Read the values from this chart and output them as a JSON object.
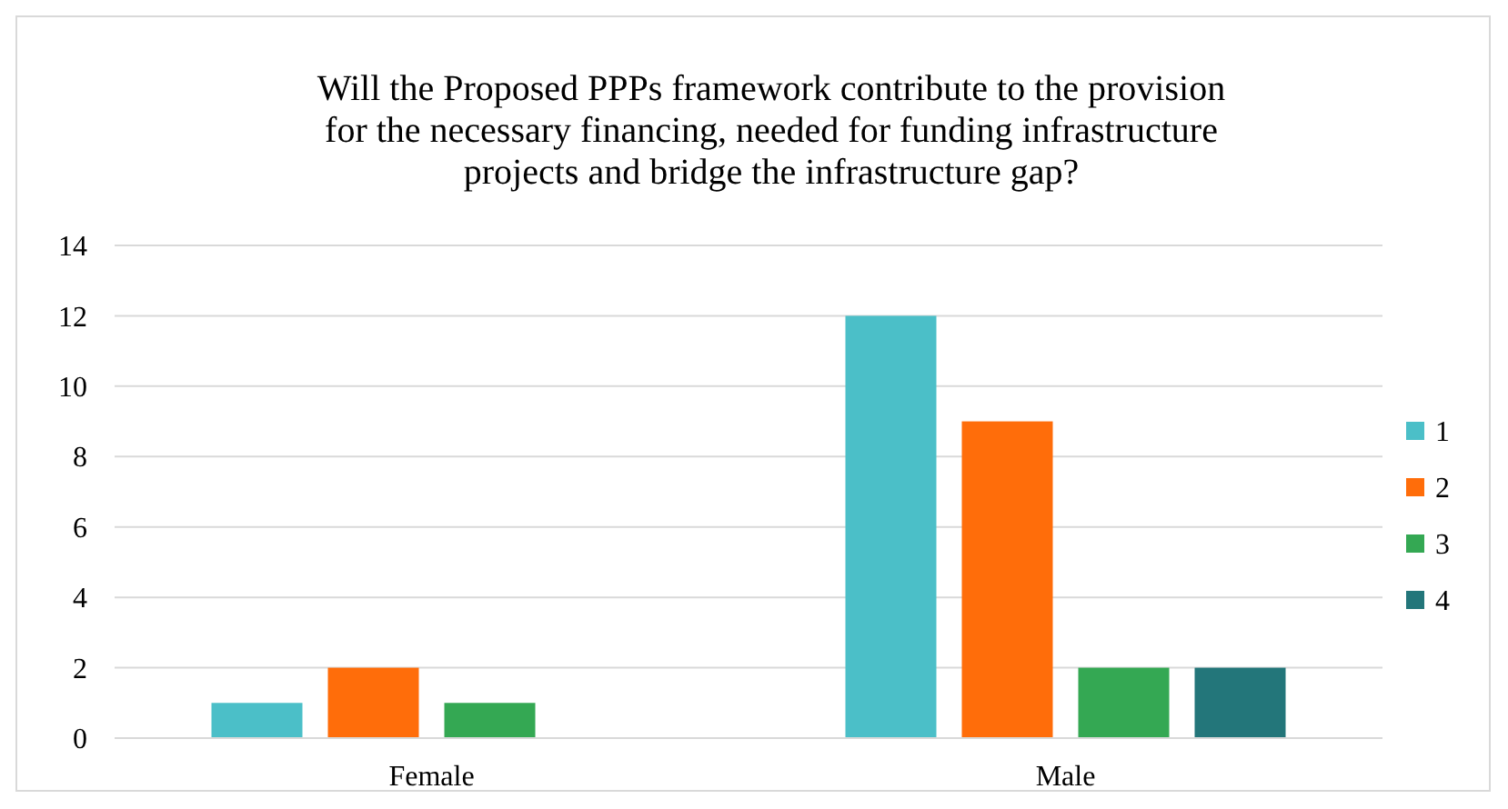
{
  "chart_data": {
    "type": "bar",
    "title": "Will the  Proposed PPPs framework contribute to the provision for the necessary financing, needed for funding infrastructure projects and bridge the infrastructure gap?",
    "categories": [
      "Female",
      "Male"
    ],
    "series": [
      {
        "name": "1",
        "color": "#4bbfc8",
        "values": [
          1,
          12
        ]
      },
      {
        "name": "2",
        "color": "#ff6d0a",
        "values": [
          2,
          9
        ]
      },
      {
        "name": "3",
        "color": "#34a853",
        "values": [
          1,
          2
        ]
      },
      {
        "name": "4",
        "color": "#23767a",
        "values": [
          null,
          2
        ]
      }
    ],
    "ylim": [
      0,
      14
    ],
    "yticks": [
      0,
      2,
      4,
      6,
      8,
      10,
      12,
      14
    ],
    "grid": "y",
    "legend": "right"
  }
}
